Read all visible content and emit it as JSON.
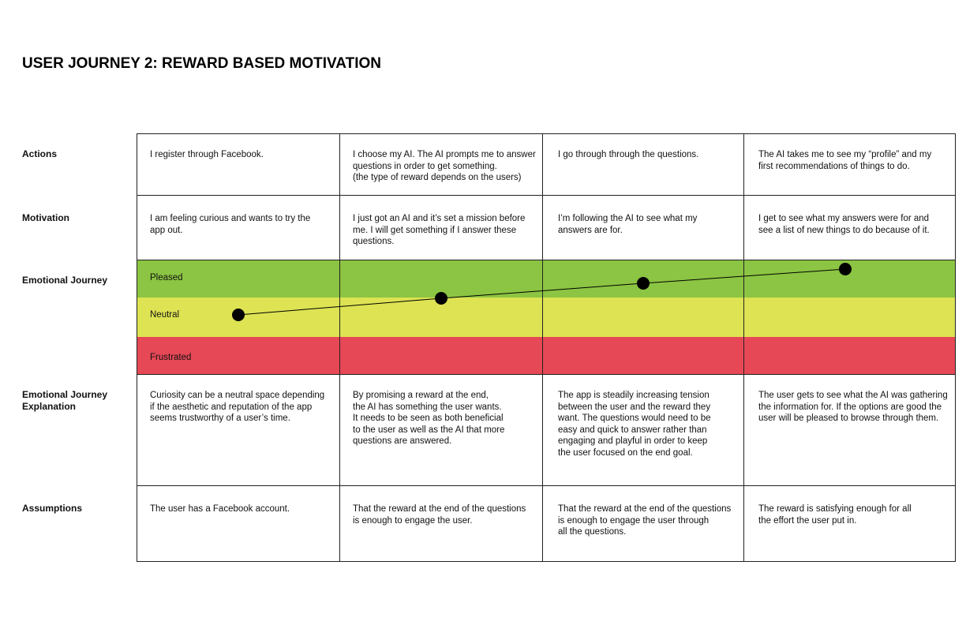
{
  "title": "USER JOURNEY 2: REWARD BASED MOTIVATION",
  "rows": [
    {
      "label": "Actions",
      "cells": [
        "I register through Facebook.",
        "I choose my AI. The AI prompts me to answer\nquestions in order to get something.\n(the type of reward depends on the users)",
        "I go through through the questions.",
        "The AI takes me to see my “profile” and my\nfirst recommendations of things to do."
      ]
    },
    {
      "label": "Motivation",
      "cells": [
        "I am feeling curious and wants to try the\napp out.",
        "I just got an AI and it’s set a mission before\nme. I will get something if I answer these\nquestions.",
        "I’m following the AI to see what my\nanswers are for.",
        "I get to see what my answers were for and\nsee a list of new things to do because of it."
      ]
    },
    {
      "label": "Emotional Journey",
      "levels": [
        "Pleased",
        "Neutral",
        "Frustrated"
      ]
    },
    {
      "label": "Emotional Journey\nExplanation",
      "cells": [
        "Curiosity can be a neutral space depending\nif the aesthetic and reputation of the app\nseems trustworthy of a user’s time.",
        "By promising a reward at the end,\nthe AI has something the user wants.\nIt needs to be seen as both beneficial\nto the user as well as the AI that more\nquestions are answered.",
        "The app is steadily increasing tension\nbetween the user and the reward they\nwant. The questions would need to be\neasy and quick to answer rather than\nengaging and playful in order to keep\nthe user focused on the end goal.",
        "The user gets to see what the AI was gathering\nthe information for. If the options are good the\nuser will be pleased to browse through them."
      ]
    },
    {
      "label": "Assumptions",
      "cells": [
        "The user has a Facebook account.",
        "That the reward at the end of the questions\nis enough to engage the user.",
        "That the reward at the end of the questions\nis enough to engage the user through\nall the questions.",
        "The reward is satisfying enough for all\nthe effort the user put in."
      ]
    }
  ]
}
